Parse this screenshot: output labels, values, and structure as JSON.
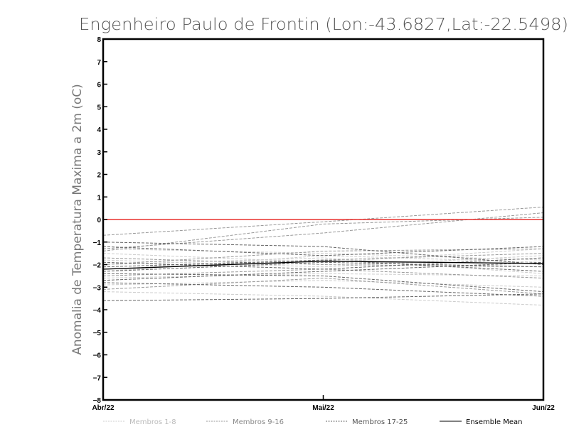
{
  "chart_data": {
    "type": "line",
    "title": "Engenheiro Paulo de Frontin (Lon:-43.6827,Lat:-22.5498)",
    "xlabel": "",
    "ylabel": "Anomalia de Temperatura Maxima a 2m (oC)",
    "x": [
      "Abr/22",
      "Mai/22",
      "Jun/22"
    ],
    "ylim": [
      -8,
      8
    ],
    "yticks": [
      8,
      7,
      6,
      5,
      4,
      3,
      2,
      1,
      0,
      -1,
      -2,
      -3,
      -4,
      -5,
      -6,
      -7,
      -8
    ],
    "reference_line": {
      "y": 0,
      "color": "#e8312f"
    },
    "legend": {
      "placement": "bottom",
      "items": [
        {
          "label": "Membros 1-8",
          "style": "dashed",
          "color": "#cccccc"
        },
        {
          "label": "Membros 9-16",
          "style": "dashed",
          "color": "#999999"
        },
        {
          "label": "Membros 17-25",
          "style": "dashed",
          "color": "#666666"
        },
        {
          "label": "Ensemble Mean",
          "style": "solid",
          "color": "#000000"
        }
      ]
    },
    "series": [
      {
        "group": "Membros 1-8",
        "color": "#cccccc",
        "values": [
          -3.2,
          -3.4,
          -3.8
        ]
      },
      {
        "group": "Membros 1-8",
        "color": "#cccccc",
        "values": [
          -2.0,
          -1.7,
          -2.4
        ]
      },
      {
        "group": "Membros 1-8",
        "color": "#cccccc",
        "values": [
          -1.5,
          -1.9,
          -1.3
        ]
      },
      {
        "group": "Membros 1-8",
        "color": "#cccccc",
        "values": [
          -2.6,
          -2.4,
          -2.5
        ]
      },
      {
        "group": "Membros 1-8",
        "color": "#cccccc",
        "values": [
          -1.8,
          -2.1,
          -1.6
        ]
      },
      {
        "group": "Membros 1-8",
        "color": "#cccccc",
        "values": [
          -2.3,
          -1.6,
          -1.9
        ]
      },
      {
        "group": "Membros 1-8",
        "color": "#cccccc",
        "values": [
          -2.9,
          -2.7,
          -3.0
        ]
      },
      {
        "group": "Membros 1-8",
        "color": "#cccccc",
        "values": [
          -1.3,
          -1.5,
          -1.8
        ]
      },
      {
        "group": "Membros 9-16",
        "color": "#999999",
        "values": [
          -0.7,
          -0.1,
          0.55
        ]
      },
      {
        "group": "Membros 9-16",
        "color": "#999999",
        "values": [
          -1.3,
          -0.6,
          0.3
        ]
      },
      {
        "group": "Membros 9-16",
        "color": "#999999",
        "values": [
          -1.4,
          -0.2,
          0.1
        ]
      },
      {
        "group": "Membros 9-16",
        "color": "#999999",
        "values": [
          -2.0,
          -1.4,
          -1.3
        ]
      },
      {
        "group": "Membros 9-16",
        "color": "#999999",
        "values": [
          -1.7,
          -2.0,
          -2.1
        ]
      },
      {
        "group": "Membros 9-16",
        "color": "#999999",
        "values": [
          -2.5,
          -2.2,
          -2.6
        ]
      },
      {
        "group": "Membros 9-16",
        "color": "#999999",
        "values": [
          -3.1,
          -2.6,
          -3.3
        ]
      },
      {
        "group": "Membros 9-16",
        "color": "#999999",
        "values": [
          -2.2,
          -1.8,
          -1.5
        ]
      },
      {
        "group": "Membros 17-25",
        "color": "#666666",
        "values": [
          -3.6,
          -3.5,
          -3.3
        ]
      },
      {
        "group": "Membros 17-25",
        "color": "#666666",
        "values": [
          -2.8,
          -3.0,
          -3.4
        ]
      },
      {
        "group": "Membros 17-25",
        "color": "#666666",
        "values": [
          -2.4,
          -2.5,
          -3.2
        ]
      },
      {
        "group": "Membros 17-25",
        "color": "#666666",
        "values": [
          -1.0,
          -1.2,
          -2.0
        ]
      },
      {
        "group": "Membros 17-25",
        "color": "#666666",
        "values": [
          -1.2,
          -1.6,
          -1.2
        ]
      },
      {
        "group": "Membros 17-25",
        "color": "#666666",
        "values": [
          -2.1,
          -1.8,
          -2.3
        ]
      },
      {
        "group": "Membros 17-25",
        "color": "#666666",
        "values": [
          -1.9,
          -2.2,
          -1.7
        ]
      },
      {
        "group": "Membros 17-25",
        "color": "#666666",
        "values": [
          -2.7,
          -2.3,
          -1.9
        ]
      },
      {
        "group": "Membros 17-25",
        "color": "#666666",
        "values": [
          -2.3,
          -1.9,
          -2.1
        ]
      },
      {
        "name": "Ensemble Mean",
        "color": "#000000",
        "values": [
          -2.2,
          -1.85,
          -1.95
        ]
      }
    ]
  }
}
